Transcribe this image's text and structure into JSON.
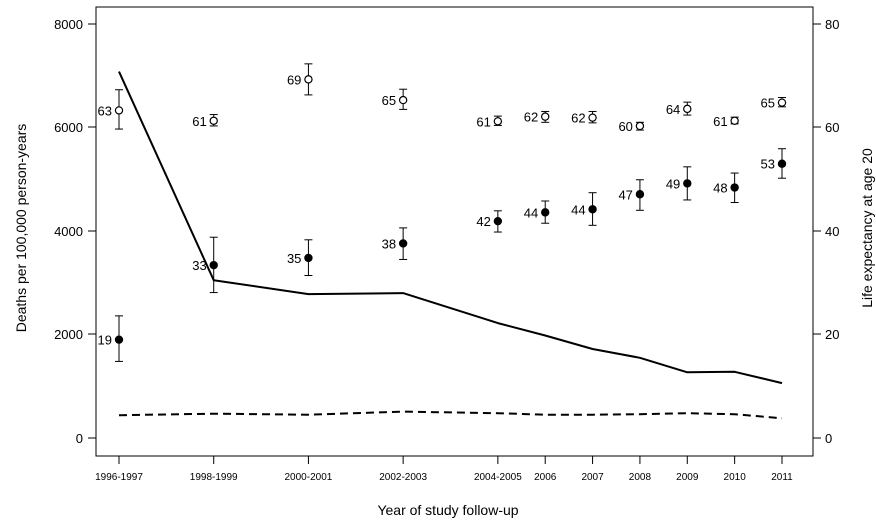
{
  "chart_data": {
    "type": "line",
    "categories": [
      "1996-1997",
      "1998-1999",
      "2000-2001",
      "2002-2003",
      "2004-2005",
      "2006",
      "2007",
      "2008",
      "2009",
      "2010",
      "2011"
    ],
    "x_positions": [
      1996.5,
      1998.5,
      2000.5,
      2002.5,
      2004.5,
      2005.5,
      2006.5,
      2007.5,
      2008.5,
      2009.5,
      2010.5
    ],
    "xlabel": "Year of study follow-up",
    "ylabel_left": "Deaths per 100,000 person-years",
    "ylabel_right": "Life expectancy at age 20",
    "ylim_left": [
      0,
      8000
    ],
    "ylim_right": [
      0,
      80
    ],
    "yticks_left": [
      "0",
      "2000",
      "4000",
      "6000",
      "8000"
    ],
    "yticks_right": [
      "0",
      "20",
      "40",
      "60",
      "80"
    ],
    "grid": false,
    "series": [
      {
        "style": "solid-line",
        "axis": "left",
        "values": [
          7080,
          3050,
          2780,
          2800,
          2220,
          1980,
          1720,
          1550,
          1270,
          1280,
          1060
        ]
      },
      {
        "style": "dashed-line",
        "axis": "left",
        "values": [
          440,
          470,
          450,
          510,
          480,
          450,
          450,
          460,
          480,
          460,
          380
        ]
      },
      {
        "style": "filled-circle",
        "axis": "right",
        "values": [
          19.0,
          33.4,
          34.8,
          37.6,
          41.9,
          43.6,
          44.2,
          47.1,
          49.2,
          48.4,
          53.0
        ],
        "lower": [
          14.8,
          28.1,
          31.4,
          34.5,
          39.8,
          41.5,
          41.1,
          44.0,
          46.0,
          45.5,
          50.2
        ],
        "upper": [
          23.6,
          38.8,
          38.3,
          40.6,
          43.9,
          45.8,
          47.4,
          49.9,
          52.4,
          51.2,
          55.9
        ],
        "labels": [
          "19",
          "33",
          "35",
          "38",
          "42",
          "44",
          "44",
          "47",
          "49",
          "48",
          "53"
        ]
      },
      {
        "style": "open-circle",
        "axis": "right",
        "values": [
          63.3,
          61.3,
          69.3,
          65.3,
          61.2,
          62.1,
          61.9,
          60.3,
          63.6,
          61.3,
          64.8
        ],
        "lower": [
          59.7,
          60.3,
          66.3,
          63.5,
          60.4,
          61.0,
          60.9,
          59.5,
          62.4,
          60.7,
          64.0
        ],
        "upper": [
          67.3,
          62.5,
          72.3,
          67.4,
          62.2,
          63.1,
          63.1,
          61.0,
          64.9,
          62.0,
          65.8
        ],
        "labels": [
          "63",
          "61",
          "69",
          "65",
          "61",
          "62",
          "62",
          "60",
          "64",
          "61",
          "65"
        ]
      }
    ]
  }
}
